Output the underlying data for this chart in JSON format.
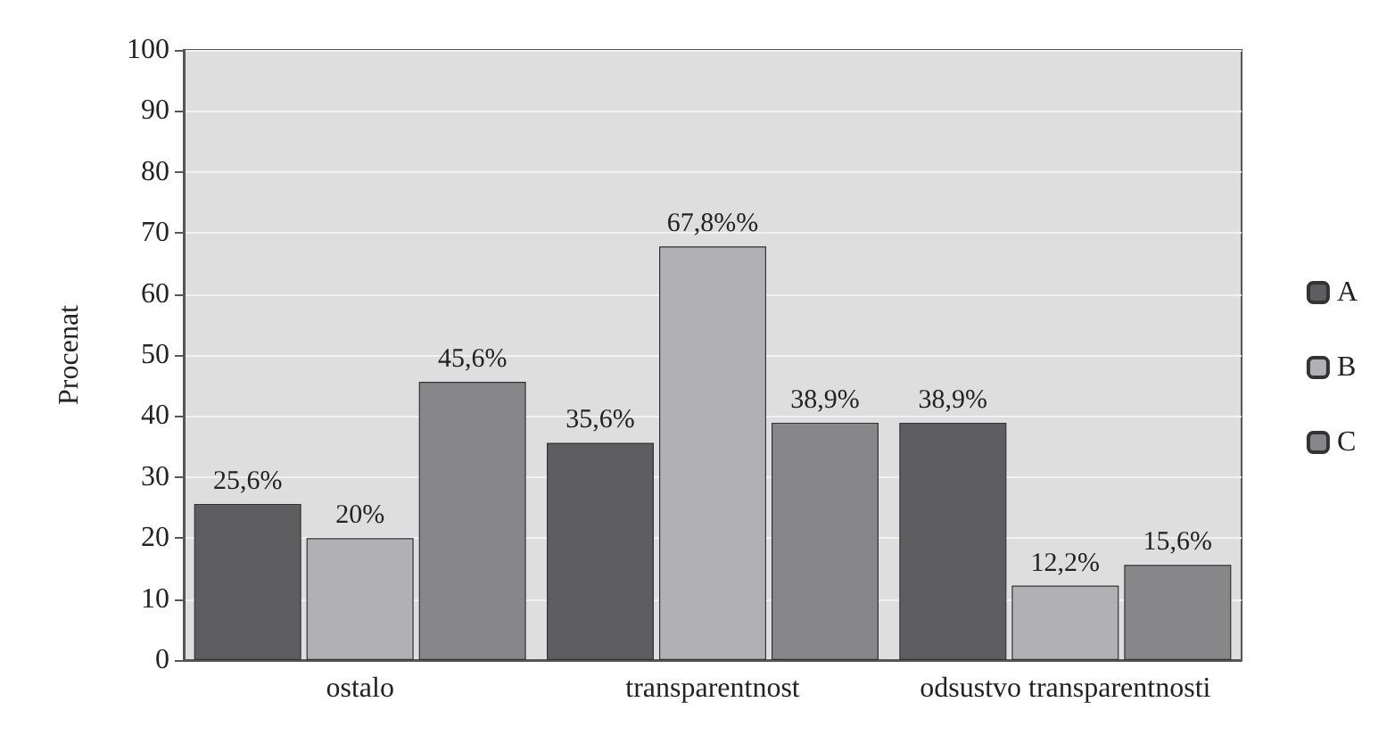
{
  "chart_data": {
    "type": "bar",
    "ylabel": "Procenat",
    "categories": [
      "ostalo",
      "transparentnost",
      "odsustvo transparentnosti"
    ],
    "series": [
      {
        "name": "A",
        "color": "#5e5e60",
        "values": [
          25.6,
          35.6,
          38.9
        ],
        "value_labels": [
          "25,6%",
          "35,6%",
          "38,9%"
        ]
      },
      {
        "name": "B",
        "color": "#b1b1b4",
        "values": [
          20,
          67.8,
          12.2
        ],
        "value_labels": [
          "20%",
          "67,8%%",
          "12,2%"
        ]
      },
      {
        "name": "C",
        "color": "#87878a",
        "values": [
          45.6,
          38.9,
          15.6
        ],
        "value_labels": [
          "45,6%",
          "38,9%",
          "15,6%"
        ]
      }
    ],
    "ylim": [
      0,
      100
    ],
    "yticks": [
      0,
      10,
      20,
      30,
      40,
      50,
      60,
      70,
      80,
      90,
      100
    ],
    "grid": "y",
    "legend": "right"
  }
}
